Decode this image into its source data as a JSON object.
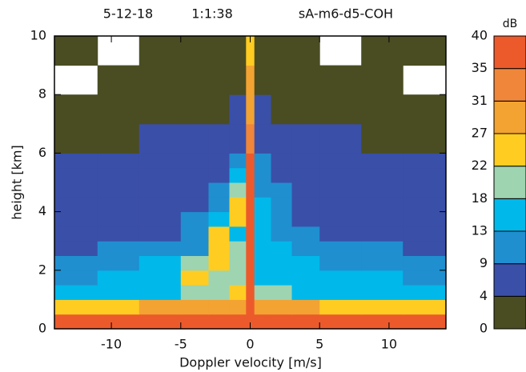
{
  "chart_data": {
    "type": "contour",
    "title_parts": [
      "5-12-18",
      "1:1:38",
      "sA-m6-d5-COH"
    ],
    "x_label": "Doppler velocity  [m/s]",
    "y_label": "height  [km]",
    "xlim": [
      -14.1,
      14.1
    ],
    "ylim": [
      0,
      10
    ],
    "xticks": [
      -10,
      -5,
      0,
      5,
      10
    ],
    "yticks": [
      0,
      2,
      4,
      6,
      8,
      10
    ],
    "xbins": [
      -14.1,
      -11,
      -8,
      -5,
      -3,
      -1.5,
      -0.3,
      0.3,
      1.5,
      3,
      5,
      8,
      11,
      14.1
    ],
    "ybins": [
      0,
      0.5,
      1,
      1.5,
      2,
      2.5,
      3,
      3.5,
      4,
      4.5,
      5,
      5.5,
      6,
      7,
      8,
      9,
      10
    ],
    "z": [
      [
        35,
        36,
        36,
        37,
        37,
        37,
        38,
        37,
        37,
        36,
        36,
        36,
        35
      ],
      [
        25,
        26,
        27,
        28,
        29,
        30,
        38,
        29,
        28,
        27,
        26,
        26,
        25
      ],
      [
        14,
        15,
        16,
        18,
        20,
        22,
        38,
        21,
        19,
        17,
        15,
        15,
        14
      ],
      [
        12,
        13,
        14,
        24,
        20,
        18,
        37,
        17,
        15,
        14,
        13,
        13,
        12
      ],
      [
        11,
        12,
        13,
        20,
        25,
        19,
        37,
        17,
        14,
        13,
        12,
        12,
        11
      ],
      [
        8,
        9,
        10,
        12,
        26,
        18,
        37,
        16,
        13,
        11,
        10,
        9,
        8
      ],
      [
        6,
        7,
        8,
        9,
        24,
        17,
        37,
        14,
        11,
        9,
        8,
        7,
        6
      ],
      [
        6,
        7,
        8,
        9,
        15,
        24,
        36,
        14,
        10,
        8,
        7,
        7,
        6
      ],
      [
        5,
        6,
        7,
        8,
        12,
        26,
        36,
        13,
        9,
        7,
        6,
        6,
        5
      ],
      [
        6,
        7,
        7,
        8,
        10,
        20,
        36,
        12,
        9,
        7,
        7,
        6,
        6
      ],
      [
        5,
        6,
        6,
        7,
        8,
        13,
        35,
        11,
        8,
        7,
        6,
        5,
        5
      ],
      [
        4,
        5,
        5,
        6,
        7,
        10,
        35,
        9,
        7,
        6,
        5,
        5,
        4
      ],
      [
        3,
        3,
        4,
        4,
        5,
        7,
        33,
        7,
        5,
        4,
        4,
        3,
        3
      ],
      [
        2,
        2,
        2,
        3,
        3,
        5,
        30,
        5,
        3,
        3,
        2,
        2,
        2
      ],
      [
        null,
        1,
        1,
        1,
        2,
        3,
        28,
        3,
        2,
        1,
        1,
        1,
        null
      ],
      [
        1,
        null,
        1,
        1,
        1,
        2,
        26,
        2,
        1,
        1,
        null,
        1,
        1
      ]
    ],
    "colorbar_label": "dB",
    "levels": [
      0,
      4,
      9,
      13,
      18,
      22,
      27,
      31,
      35,
      40
    ],
    "colors": [
      "#4a4d22",
      "#3a4fa8",
      "#1f8fd0",
      "#00b8ea",
      "#9ed4b0",
      "#ffcc22",
      "#f3a332",
      "#f0863a",
      "#ec5a2c"
    ]
  }
}
